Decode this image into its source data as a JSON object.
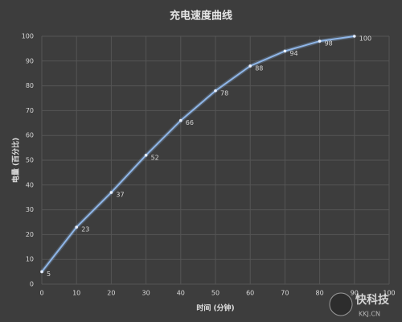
{
  "chart_data": {
    "type": "line",
    "title": "充电速度曲线",
    "x_label": "时间 (分钟)",
    "y_label": "电量 (百分比)",
    "x": [
      0,
      10,
      20,
      30,
      40,
      50,
      60,
      70,
      80,
      90
    ],
    "series": [
      {
        "color": "#8fb6e8",
        "values": [
          5,
          23,
          37,
          52,
          66,
          78,
          88,
          94,
          98,
          100
        ]
      }
    ],
    "xlim": [
      0,
      100
    ],
    "xticks": [
      0,
      10,
      20,
      30,
      40,
      50,
      60,
      70,
      80,
      90,
      100
    ],
    "ylim": [
      0,
      100
    ],
    "yticks": [
      0,
      10,
      20,
      30,
      40,
      50,
      60,
      70,
      80,
      90,
      100
    ],
    "grid": true,
    "data_labels": true,
    "watermark": "快科技",
    "watermark_sub": "KKJ.CN"
  }
}
